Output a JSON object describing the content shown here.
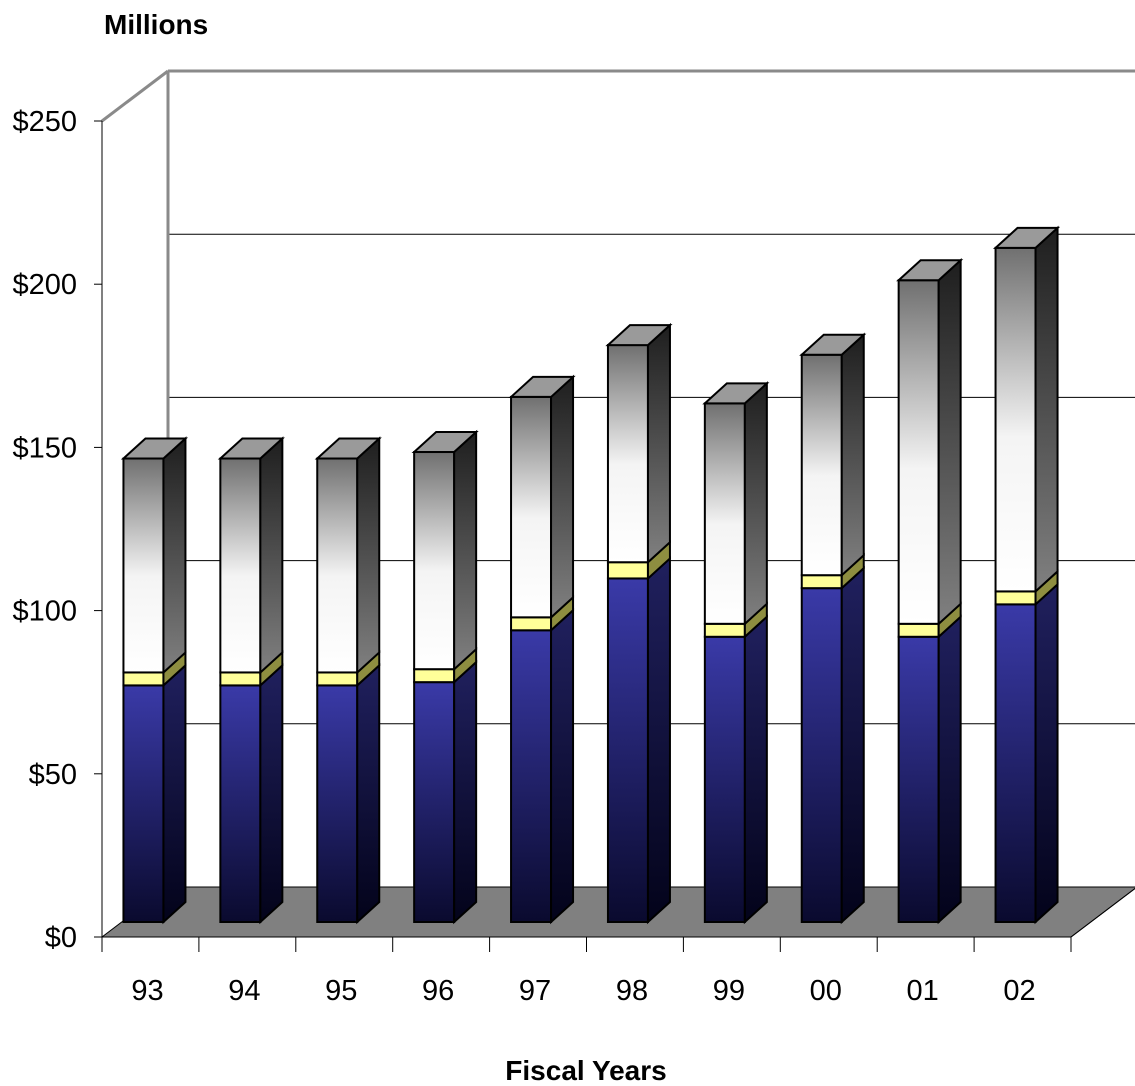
{
  "chart_data": {
    "type": "bar",
    "stacked": true,
    "three_d": true,
    "title": "",
    "ylabel": "Millions",
    "xlabel": "Fiscal Years",
    "categories": [
      "93",
      "94",
      "95",
      "96",
      "97",
      "98",
      "99",
      "00",
      "01",
      "02"
    ],
    "ylim": [
      0,
      250
    ],
    "yticks": [
      "$0",
      "$50",
      "$100",
      "$150",
      "$200",
      "$250"
    ],
    "ytick_values": [
      0,
      50,
      100,
      150,
      200,
      250
    ],
    "grid": true,
    "legend": "none",
    "series": [
      {
        "values": [
          73,
          73,
          73,
          74,
          90,
          106,
          88,
          103,
          88,
          98
        ],
        "color": "#333399"
      },
      {
        "values": [
          4,
          4,
          4,
          4,
          4,
          5,
          4,
          4,
          4,
          4
        ],
        "color": "#ffff99"
      },
      {
        "values": [
          66,
          66,
          66,
          67,
          68,
          67,
          68,
          68,
          106,
          106
        ],
        "color": "#f2f2f2"
      }
    ]
  }
}
